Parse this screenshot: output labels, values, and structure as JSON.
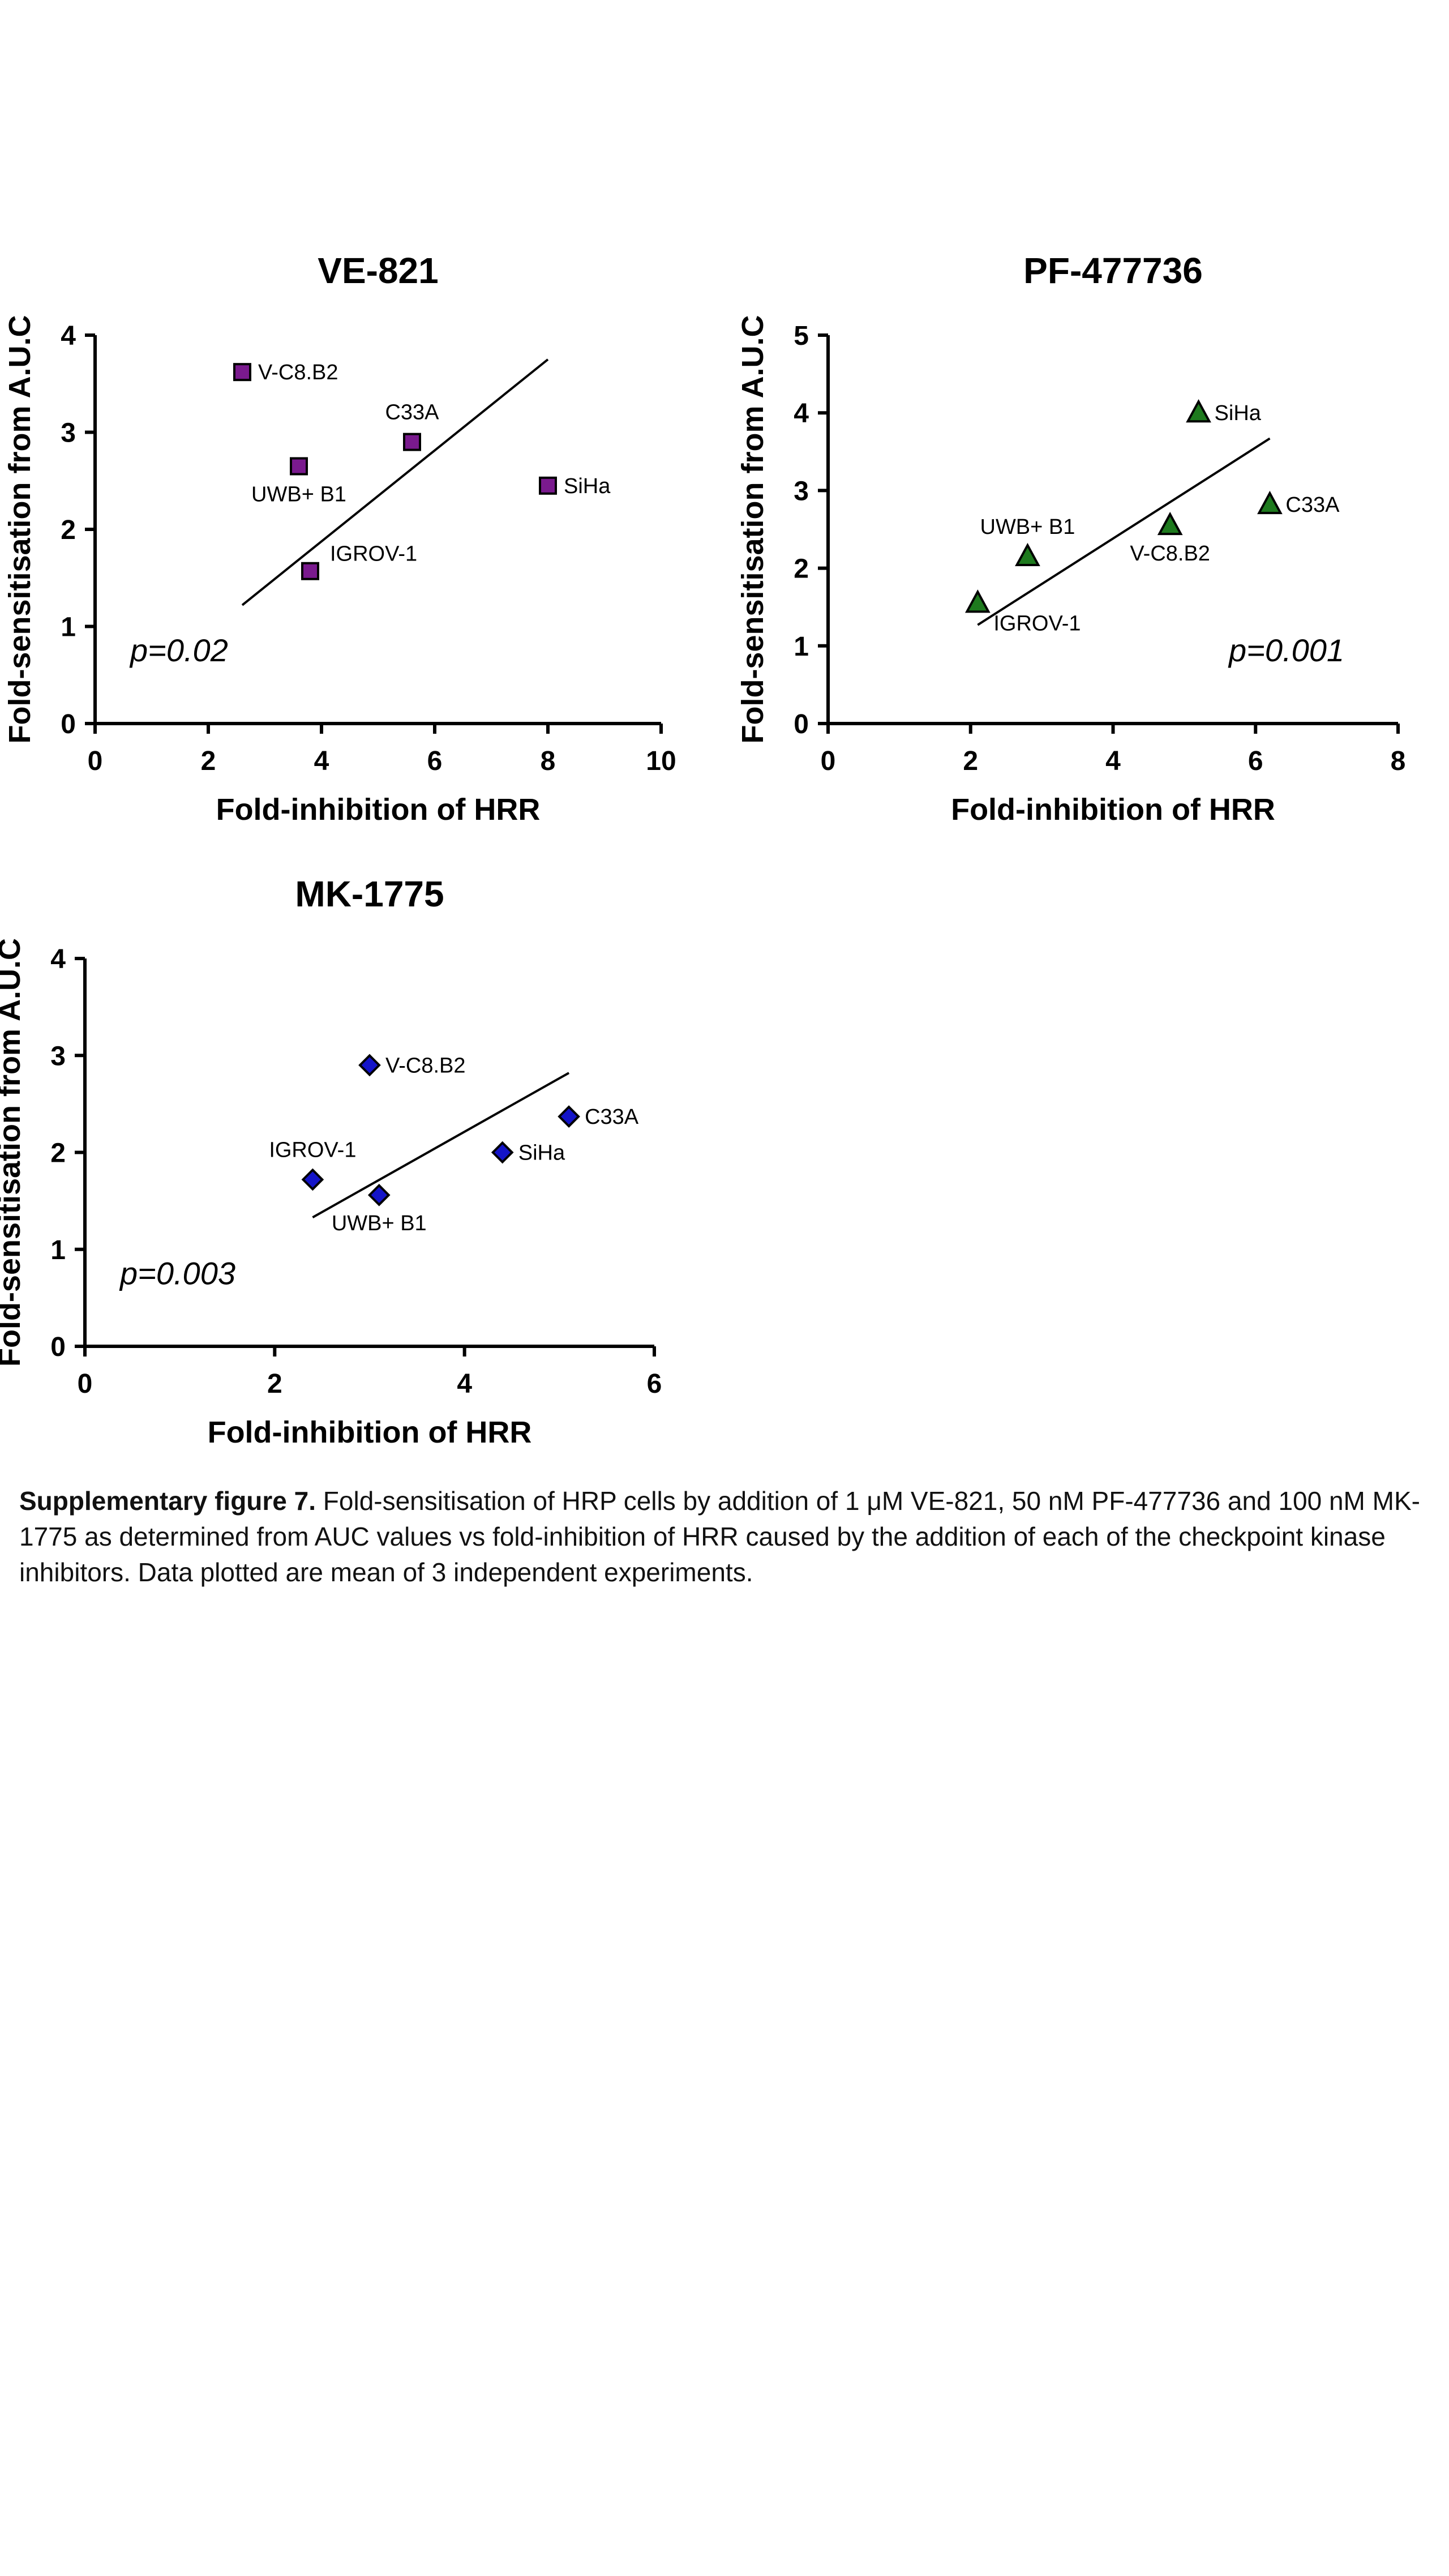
{
  "chart_data": [
    {
      "type": "scatter",
      "title": "VE-821",
      "xlabel": "Fold-inhibition of HRR",
      "ylabel": "Fold-sensitisation from A.U.C",
      "xlim": [
        0,
        10
      ],
      "ylim": [
        0,
        4
      ],
      "xticks": [
        "0",
        "2",
        "4",
        "6",
        "8",
        "10"
      ],
      "yticks": [
        "0",
        "1",
        "2",
        "3",
        "4"
      ],
      "marker": "square",
      "color": "#7a1a8e",
      "points": [
        {
          "label": "V-C8.B2",
          "x": 2.6,
          "y": 3.62,
          "label_pos": "right"
        },
        {
          "label": "C33A",
          "x": 5.6,
          "y": 2.9,
          "label_pos": "above"
        },
        {
          "label": "UWB+ B1",
          "x": 3.6,
          "y": 2.65,
          "label_pos": "below"
        },
        {
          "label": "SiHa",
          "x": 8.0,
          "y": 2.45,
          "label_pos": "right"
        },
        {
          "label": "IGROV-1",
          "x": 3.8,
          "y": 1.57,
          "label_pos": "right-up"
        }
      ],
      "fit_line": {
        "x": [
          2.6,
          8.0
        ],
        "y": [
          1.22,
          3.75
        ]
      },
      "annotation": "p=0.02",
      "annotation_pos": "bottom-left",
      "grid": false
    },
    {
      "type": "scatter",
      "title": "PF-477736",
      "xlabel": "Fold-inhibition of HRR",
      "ylabel": "Fold-sensitisation from A.U.C",
      "xlim": [
        0,
        8
      ],
      "ylim": [
        0,
        5
      ],
      "xticks": [
        "0",
        "2",
        "4",
        "6",
        "8"
      ],
      "yticks": [
        "0",
        "1",
        "2",
        "3",
        "4",
        "5"
      ],
      "marker": "triangle",
      "color": "#1e7a1e",
      "points": [
        {
          "label": "SiHa",
          "x": 5.2,
          "y": 4.0,
          "label_pos": "right"
        },
        {
          "label": "C33A",
          "x": 6.2,
          "y": 2.82,
          "label_pos": "right"
        },
        {
          "label": "UWB+ B1",
          "x": 2.8,
          "y": 2.15,
          "label_pos": "above"
        },
        {
          "label": "V-C8.B2",
          "x": 4.8,
          "y": 2.55,
          "label_pos": "below"
        },
        {
          "label": "IGROV-1",
          "x": 2.1,
          "y": 1.55,
          "label_pos": "below-right"
        }
      ],
      "fit_line": {
        "x": [
          2.1,
          6.2
        ],
        "y": [
          1.27,
          3.67
        ]
      },
      "annotation": "p=0.001",
      "annotation_pos": "bottom-right",
      "grid": false
    },
    {
      "type": "scatter",
      "title": "MK-1775",
      "xlabel": "Fold-inhibition of HRR",
      "ylabel": "Fold-sensitisation from A.U.C",
      "xlim": [
        0,
        6
      ],
      "ylim": [
        0,
        4
      ],
      "xticks": [
        "0",
        "2",
        "4",
        "6"
      ],
      "yticks": [
        "0",
        "1",
        "2",
        "3",
        "4"
      ],
      "marker": "diamond",
      "color": "#1414c8",
      "points": [
        {
          "label": "V-C8.B2",
          "x": 3.0,
          "y": 2.9,
          "label_pos": "right"
        },
        {
          "label": "C33A",
          "x": 5.1,
          "y": 2.37,
          "label_pos": "right"
        },
        {
          "label": "SiHa",
          "x": 4.4,
          "y": 2.0,
          "label_pos": "right"
        },
        {
          "label": "IGROV-1",
          "x": 2.4,
          "y": 1.72,
          "label_pos": "above"
        },
        {
          "label": "UWB+ B1",
          "x": 3.1,
          "y": 1.56,
          "label_pos": "below"
        }
      ],
      "fit_line": {
        "x": [
          2.4,
          5.1
        ],
        "y": [
          1.33,
          2.82
        ]
      },
      "annotation": "p=0.003",
      "annotation_pos": "bottom-left",
      "grid": false
    }
  ],
  "caption": {
    "bold": "Supplementary figure 7.",
    "text": "  Fold-sensitisation of HRP cells by addition of 1 μM VE-821, 50 nM PF-477736 and 100 nM MK-1775 as determined from AUC values vs fold-inhibition of HRR caused by the addition of each of the checkpoint kinase inhibitors. Data plotted are mean of 3 independent experiments."
  }
}
